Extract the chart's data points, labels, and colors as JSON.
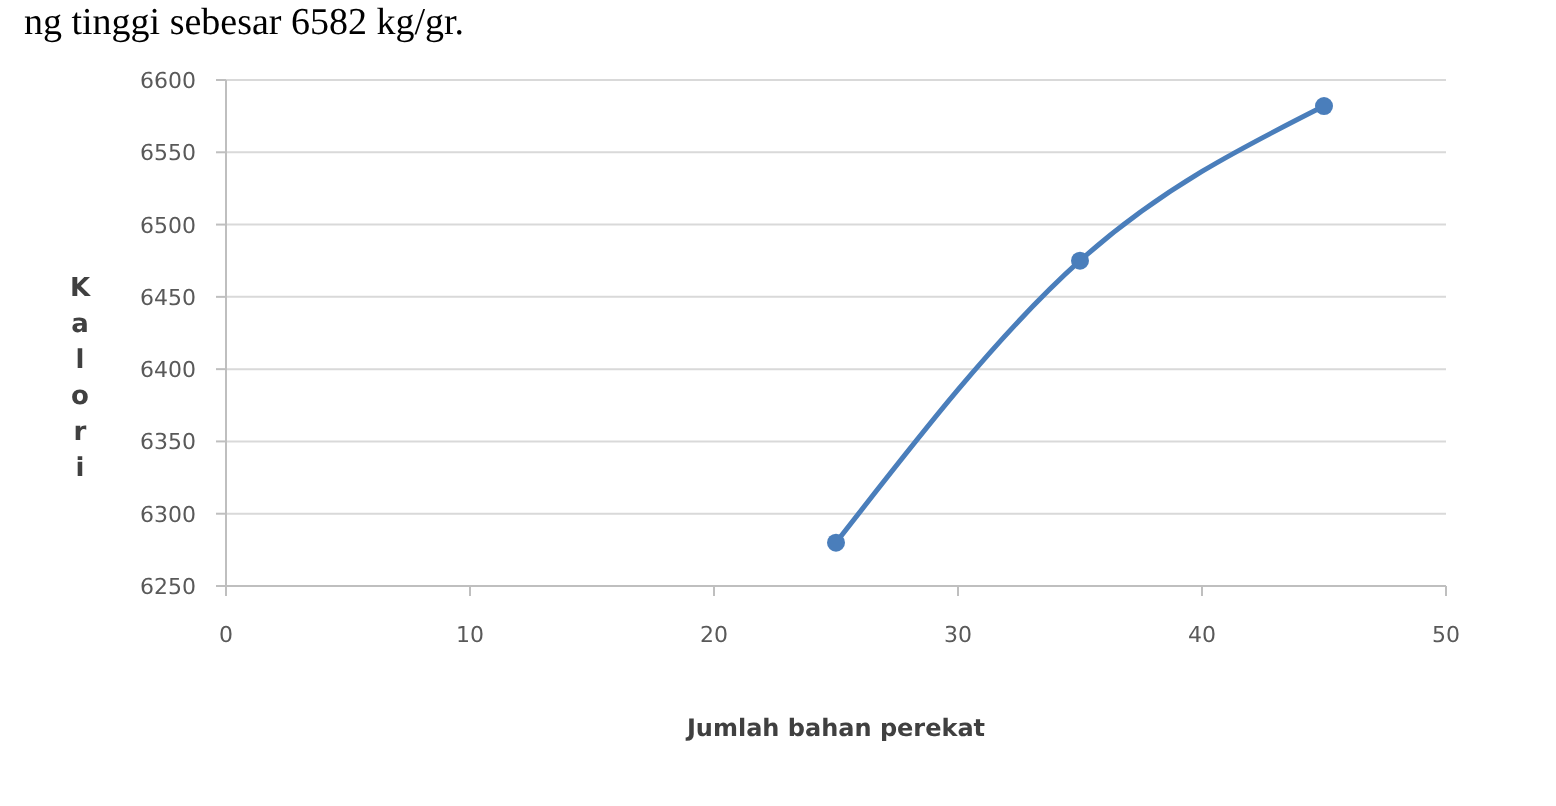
{
  "chart_data": {
    "type": "line",
    "xlabel": "Jumlah bahan perekat",
    "ylabel": "Kalori",
    "annotations": [
      "ng tinggi sebesar 6582 kg/gr."
    ],
    "x": [
      25,
      35,
      45
    ],
    "series": [
      {
        "color": "#4a7ebb",
        "values": [
          6280,
          6475,
          6582
        ]
      }
    ],
    "xlim": [
      0,
      50
    ],
    "xticks": [
      0,
      10,
      20,
      30,
      40,
      50
    ],
    "ylim": [
      6250,
      6600
    ],
    "yticks": [
      6250,
      6300,
      6350,
      6400,
      6450,
      6500,
      6550,
      6600
    ],
    "grid": "y",
    "marker": "circle",
    "line_style": "solid"
  }
}
